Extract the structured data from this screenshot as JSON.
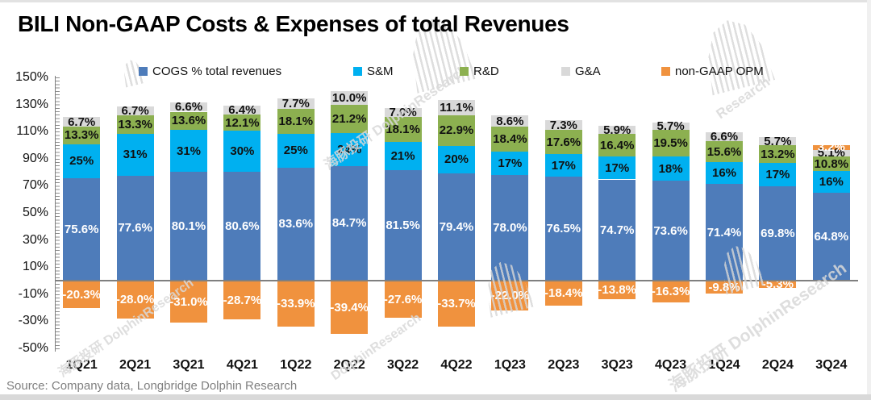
{
  "source": "Source: Company data, Longbridge Dolphin Research",
  "watermark": {
    "full": "海豚投研 DolphinResearch",
    "en": "DolphinResearch",
    "research": "Research"
  },
  "chart_data": {
    "type": "bar",
    "subtype": "stacked",
    "title": "BILI Non-GAAP Costs & Expenses of total Revenues",
    "xlabel": "",
    "ylabel": "",
    "ylim": [
      -50,
      150
    ],
    "grid": false,
    "legend_position": "top",
    "categories": [
      "1Q21",
      "2Q21",
      "3Q21",
      "4Q21",
      "1Q22",
      "2Q22",
      "3Q22",
      "4Q22",
      "1Q23",
      "2Q23",
      "3Q23",
      "4Q23",
      "1Q24",
      "2Q24",
      "3Q24"
    ],
    "yticks": [
      {
        "value": 150,
        "label": "150%"
      },
      {
        "value": 130,
        "label": "130%"
      },
      {
        "value": 110,
        "label": "110%"
      },
      {
        "value": 90,
        "label": "90%"
      },
      {
        "value": 70,
        "label": "70%"
      },
      {
        "value": 50,
        "label": "50%"
      },
      {
        "value": 30,
        "label": "30%"
      },
      {
        "value": 10,
        "label": "10%"
      },
      {
        "value": -10,
        "label": "-10%"
      },
      {
        "value": -30,
        "label": "-30%"
      },
      {
        "value": -50,
        "label": "-50%"
      }
    ],
    "series": [
      {
        "name": "COGS % total revenues",
        "color": "#4e7cba",
        "label_color": "#ffffff",
        "values": [
          75.6,
          77.6,
          80.1,
          80.6,
          83.6,
          84.7,
          81.5,
          79.4,
          78.0,
          76.5,
          74.7,
          73.6,
          71.4,
          69.8,
          64.8
        ],
        "labels": [
          "75.6%",
          "77.6%",
          "80.1%",
          "80.6%",
          "83.6%",
          "84.7%",
          "81.5%",
          "79.4%",
          "78.0%",
          "76.5%",
          "74.7%",
          "73.6%",
          "71.4%",
          "69.8%",
          "64.8%"
        ]
      },
      {
        "name": "S&M",
        "color": "#00b0f0",
        "label_color": "#111111",
        "values": [
          25,
          31,
          31,
          30,
          25,
          24,
          21,
          20,
          17,
          17,
          17,
          18,
          16,
          17,
          16
        ],
        "labels": [
          "25%",
          "31%",
          "31%",
          "30%",
          "25%",
          "24%",
          "21%",
          "20%",
          "17%",
          "17%",
          "17%",
          "18%",
          "16%",
          "17%",
          "16%"
        ]
      },
      {
        "name": "R&D",
        "color": "#8cb050",
        "label_color": "#111111",
        "values": [
          13.3,
          13.3,
          13.6,
          12.1,
          18.1,
          21.2,
          18.1,
          22.9,
          18.4,
          17.6,
          16.4,
          19.5,
          15.6,
          13.2,
          10.8
        ],
        "labels": [
          "13.3%",
          "13.3%",
          "13.6%",
          "12.1%",
          "18.1%",
          "21.2%",
          "18.1%",
          "22.9%",
          "18.4%",
          "17.6%",
          "16.4%",
          "19.5%",
          "15.6%",
          "13.2%",
          "10.8%"
        ]
      },
      {
        "name": "G&A",
        "color": "#d9d9d9",
        "label_color": "#111111",
        "values": [
          6.7,
          6.7,
          6.6,
          6.4,
          7.7,
          10.0,
          7.0,
          11.1,
          8.6,
          7.3,
          5.9,
          5.7,
          6.6,
          5.7,
          5.1
        ],
        "labels": [
          "6.7%",
          "6.7%",
          "6.6%",
          "6.4%",
          "7.7%",
          "10.0%",
          "7.0%",
          "11.1%",
          "8.6%",
          "7.3%",
          "5.9%",
          "5.7%",
          "6.6%",
          "5.7%",
          "5.1%"
        ]
      },
      {
        "name": "non-GAAP OPM",
        "color": "#f0923e",
        "label_color": "#ffffff",
        "values": [
          -20.3,
          -28.0,
          -31.0,
          -28.7,
          -33.9,
          -39.4,
          -27.6,
          -33.7,
          -22.0,
          -18.4,
          -13.8,
          -16.3,
          -9.8,
          -5.3,
          3.2
        ],
        "labels": [
          "-20.3%",
          "-28.0%",
          "-31.0%",
          "-28.7%",
          "-33.9%",
          "-39.4%",
          "-27.6%",
          "-33.7%",
          "-22.0%",
          "-18.4%",
          "-13.8%",
          "-16.3%",
          "-9.8%",
          "-5.3%",
          "3.2%"
        ]
      }
    ]
  }
}
